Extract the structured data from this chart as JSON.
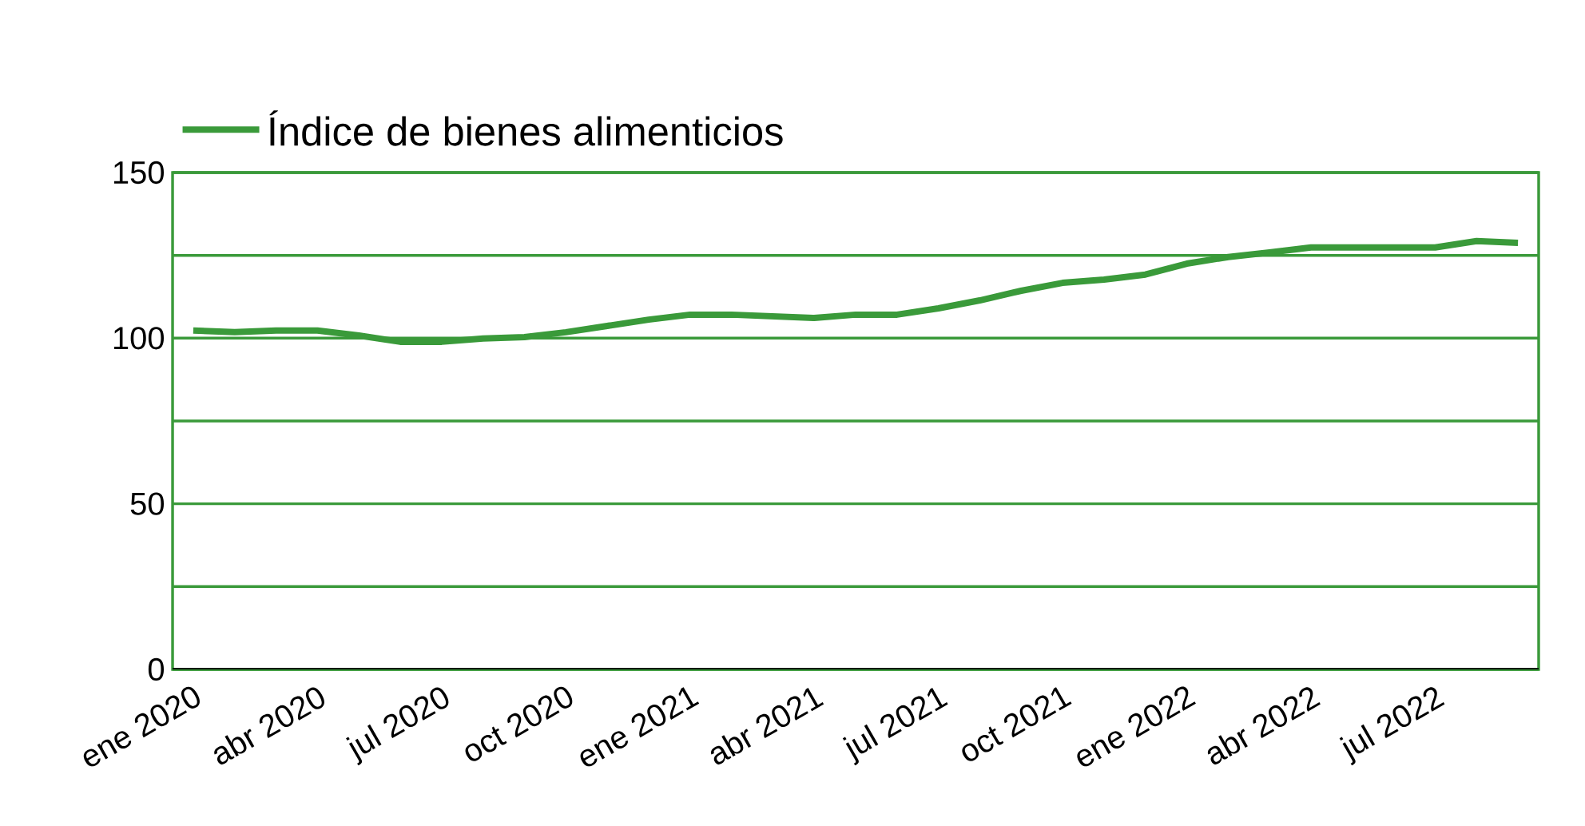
{
  "chart_data": {
    "type": "line",
    "categories": [
      "ene 2020",
      null,
      null,
      "abr 2020",
      null,
      null,
      "jul 2020",
      null,
      null,
      "oct 2020",
      null,
      null,
      "ene 2021",
      null,
      null,
      "abr 2021",
      null,
      null,
      "jul 2021",
      null,
      null,
      "oct 2021",
      null,
      null,
      "ene 2022",
      null,
      null,
      "abr 2022",
      null,
      null,
      "jul 2022",
      null,
      null
    ],
    "series": [
      {
        "name": "Índice de bienes alimenticios",
        "color": "#3a9a3a",
        "values": [
          102.3,
          101.8,
          102.3,
          102.3,
          100.8,
          98.9,
          98.9,
          99.9,
          100.3,
          101.8,
          103.7,
          105.6,
          107.1,
          107.1,
          106.6,
          106.1,
          107.1,
          107.1,
          109,
          111.4,
          114.3,
          116.7,
          117.7,
          119.2,
          122.5,
          124.5,
          125.9,
          127.4,
          127.4,
          127.4,
          127.4,
          129.3,
          128.8
        ]
      }
    ],
    "ylim": [
      0,
      150
    ],
    "yticks": [
      0,
      {
        "value": 25,
        "label": null
      },
      50,
      {
        "value": 75,
        "label": null
      },
      100,
      {
        "value": 125,
        "label": null
      },
      150
    ],
    "grid": "y",
    "legend": "top left"
  }
}
